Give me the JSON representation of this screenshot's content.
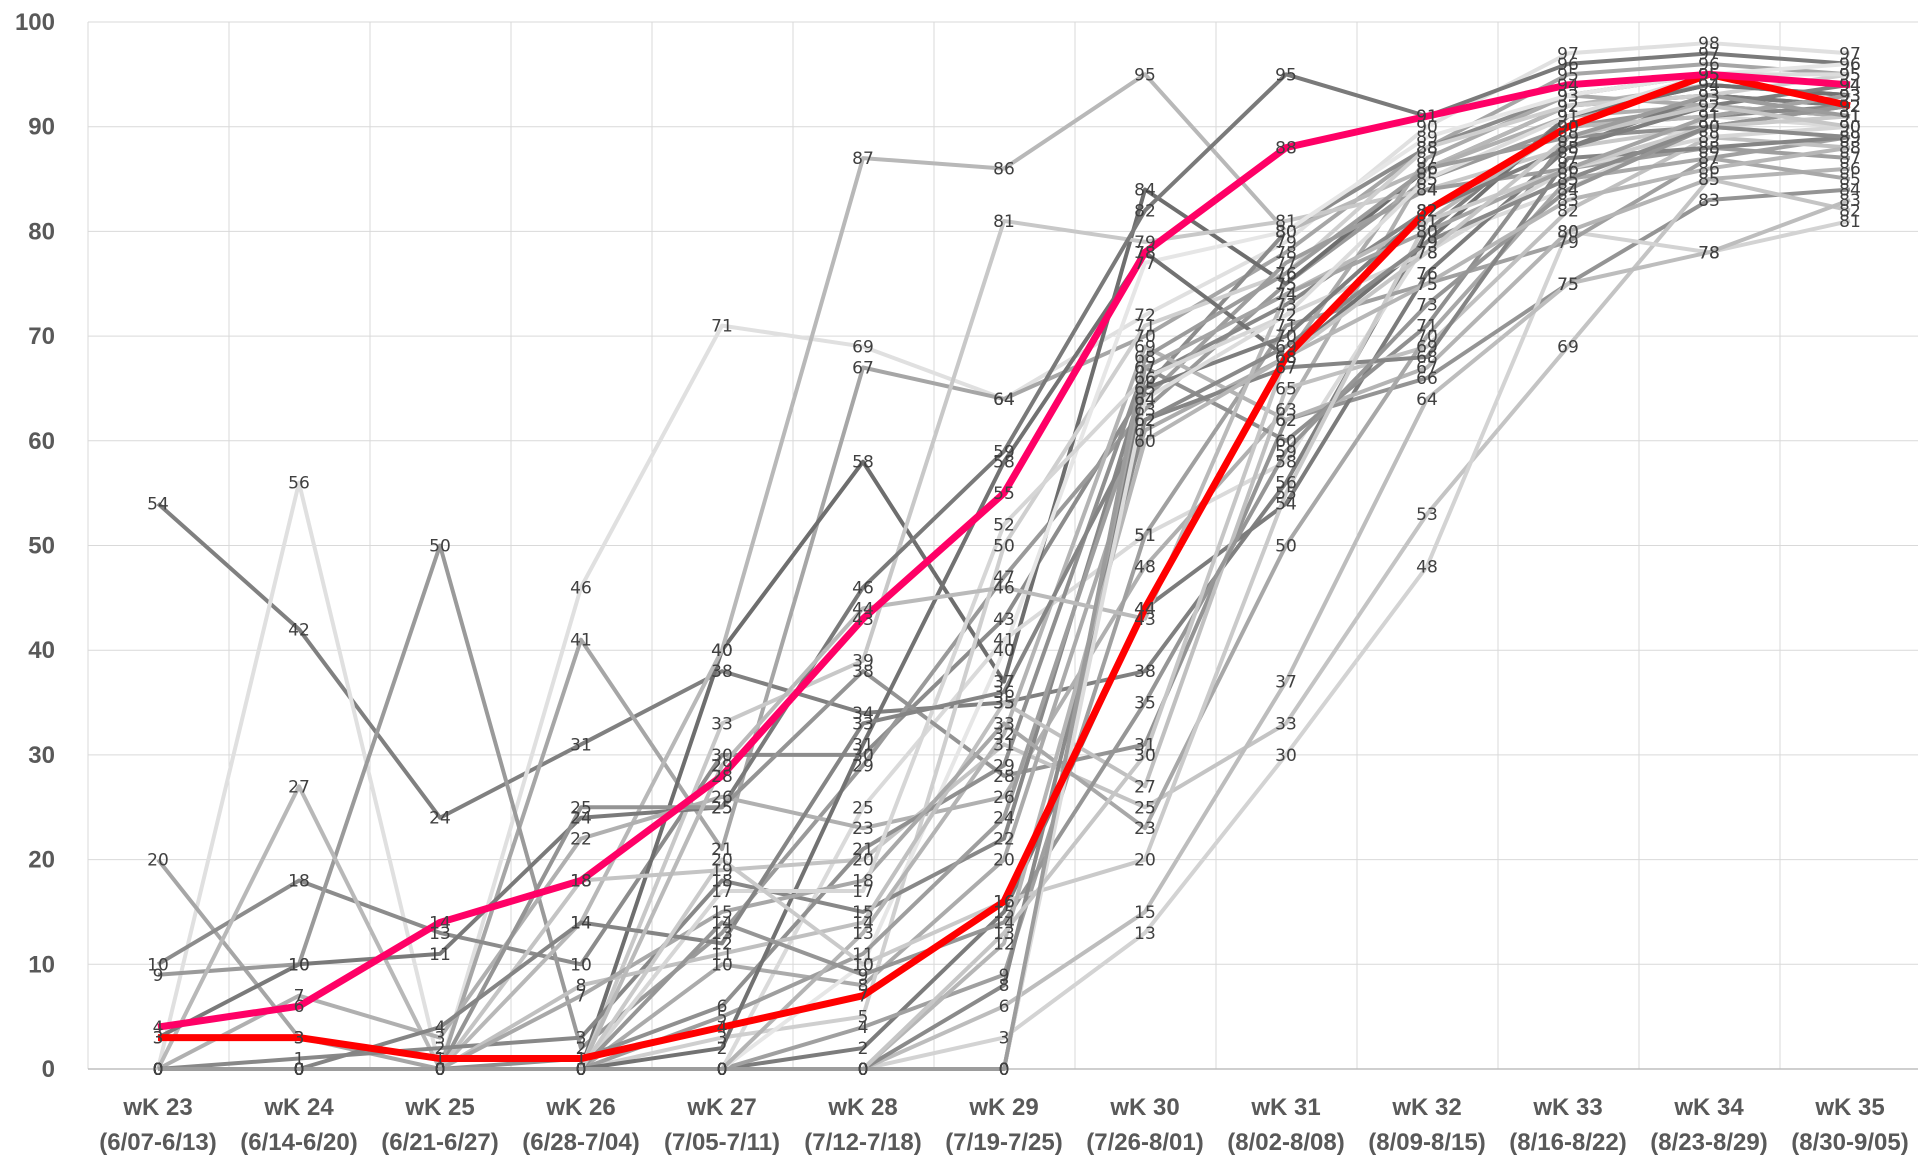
{
  "chart_data": {
    "type": "line",
    "title": "",
    "xlabel": "",
    "ylabel": "",
    "ylim": [
      0,
      100
    ],
    "yticks": [
      "0",
      "10",
      "20",
      "30",
      "40",
      "50",
      "60",
      "70",
      "80",
      "90",
      "100"
    ],
    "grid": true,
    "legend": "none",
    "categories": [
      {
        "week": "wK 23",
        "range": "(6/07-6/13)"
      },
      {
        "week": "wK 24",
        "range": "(6/14-6/20)"
      },
      {
        "week": "wK 25",
        "range": "(6/21-6/27)"
      },
      {
        "week": "wK 26",
        "range": "(6/28-7/04)"
      },
      {
        "week": "wK 27",
        "range": "(7/05-7/11)"
      },
      {
        "week": "wK 28",
        "range": "(7/12-7/18)"
      },
      {
        "week": "wK 29",
        "range": "(7/19-7/25)"
      },
      {
        "week": "wK 30",
        "range": "(7/26-8/01)"
      },
      {
        "week": "wK 31",
        "range": "(8/02-8/08)"
      },
      {
        "week": "wK 32",
        "range": "(8/09-8/15)"
      },
      {
        "week": "wK 33",
        "range": "(8/16-8/22)"
      },
      {
        "week": "wK 34",
        "range": "(8/23-8/29)"
      },
      {
        "week": "wK 35",
        "range": "(8/30-9/05)"
      }
    ],
    "series": [
      {
        "color": "#808080",
        "values": [
          54,
          42,
          24,
          31,
          38,
          34,
          35,
          38,
          56,
          80,
          91,
          94,
          93
        ]
      },
      {
        "color": "#e0e0e0",
        "values": [
          0,
          56,
          0,
          46,
          71,
          69,
          64,
          72,
          79,
          90,
          97,
          98,
          97
        ]
      },
      {
        "color": "#a6a6a6",
        "values": [
          20,
          3,
          0,
          41,
          21,
          67,
          64,
          70,
          78,
          88,
          95,
          96,
          95
        ]
      },
      {
        "color": "#8c8c8c",
        "values": [
          10,
          18,
          13,
          10,
          30,
          30,
          43,
          65,
          80,
          88,
          93,
          95,
          94
        ]
      },
      {
        "color": "#9a9a9a",
        "values": [
          9,
          10,
          50,
          2,
          13,
          29,
          47,
          63,
          75,
          85,
          90,
          92,
          91
        ]
      },
      {
        "color": "#6e6e6e",
        "values": [
          0,
          0,
          0,
          0,
          40,
          58,
          37,
          84,
          75,
          86,
          92,
          93,
          92
        ]
      },
      {
        "color": "#b8b8b8",
        "values": [
          0,
          27,
          0,
          14,
          40,
          87,
          86,
          95,
          80,
          86,
          92,
          94,
          93
        ]
      },
      {
        "color": "#c8c8c8",
        "values": [
          0,
          0,
          0,
          0,
          33,
          39,
          81,
          79,
          81,
          84,
          88,
          90,
          89
        ]
      },
      {
        "color": "#7a7a7a",
        "values": [
          3,
          10,
          11,
          24,
          25,
          46,
          59,
          82,
          95,
          91,
          96,
          97,
          96
        ]
      },
      {
        "color": "#dadada",
        "values": [
          0,
          0,
          0,
          0,
          0,
          25,
          41,
          51,
          58,
          79,
          84,
          91,
          90
        ]
      },
      {
        "color": "#b0b0b0",
        "values": [
          0,
          7,
          3,
          22,
          26,
          23,
          26,
          48,
          63,
          86,
          91,
          92,
          91
        ]
      },
      {
        "color": "#949494",
        "values": [
          0,
          0,
          0,
          25,
          25,
          38,
          28,
          31,
          62,
          66,
          75,
          83,
          84
        ]
      },
      {
        "color": "#c4c4c4",
        "values": [
          0,
          0,
          0,
          18,
          19,
          20,
          31,
          25,
          33,
          53,
          69,
          85,
          82
        ]
      },
      {
        "color": "#d3d3d3",
        "values": [
          0,
          0,
          0,
          0,
          0,
          0,
          3,
          13,
          30,
          48,
          80,
          78,
          81
        ]
      },
      {
        "color": "#bdbdbd",
        "values": [
          0,
          0,
          0,
          0,
          0,
          0,
          6,
          15,
          37,
          64,
          75,
          78,
          83
        ]
      },
      {
        "color": "#7c7c7c",
        "values": [
          0,
          0,
          0,
          0,
          0,
          2,
          15,
          44,
          54,
          76,
          88,
          93,
          92
        ]
      },
      {
        "color": "#a0a0a0",
        "values": [
          0,
          0,
          0,
          0,
          0,
          4,
          9,
          51,
          71,
          75,
          79,
          87,
          89
        ]
      },
      {
        "color": "#ababab",
        "values": [
          0,
          0,
          0,
          0,
          10,
          8,
          20,
          61,
          68,
          87,
          93,
          92,
          91
        ]
      },
      {
        "color": "#cfcfcf",
        "values": [
          0,
          0,
          0,
          0,
          3,
          5,
          50,
          71,
          76,
          88,
          92,
          93,
          95
        ]
      },
      {
        "color": "#e6e6e6",
        "values": [
          0,
          0,
          0,
          0,
          0,
          10,
          40,
          77,
          80,
          89,
          93,
          95,
          96
        ]
      },
      {
        "color": "#888888",
        "values": [
          0,
          1,
          2,
          3,
          18,
          15,
          22,
          66,
          73,
          82,
          90,
          91,
          92
        ]
      },
      {
        "color": "#9e9e9e",
        "values": [
          0,
          0,
          0,
          0,
          5,
          11,
          24,
          64,
          77,
          84,
          86,
          88,
          87
        ]
      },
      {
        "color": "#b4b4b4",
        "values": [
          0,
          0,
          0,
          0,
          0,
          13,
          32,
          69,
          62,
          67,
          80,
          85,
          86
        ]
      },
      {
        "color": "#909090",
        "values": [
          0,
          0,
          0,
          1,
          6,
          21,
          29,
          67,
          60,
          71,
          89,
          90,
          92
        ]
      },
      {
        "color": "#c0c0c0",
        "values": [
          0,
          0,
          0,
          8,
          11,
          14,
          35,
          27,
          65,
          69,
          82,
          89,
          88
        ]
      },
      {
        "color": "#727272",
        "values": [
          0,
          0,
          0,
          0,
          2,
          31,
          58,
          78,
          68,
          79,
          91,
          94,
          93
        ]
      },
      {
        "color": "#a8a8a8",
        "values": [
          0,
          0,
          0,
          7,
          15,
          18,
          33,
          23,
          50,
          70,
          85,
          87,
          85
        ]
      },
      {
        "color": "#d6d6d6",
        "values": [
          0,
          0,
          0,
          0,
          17,
          17,
          52,
          66,
          72,
          78,
          86,
          89,
          90
        ]
      },
      {
        "color": "#858585",
        "values": [
          0,
          0,
          4,
          14,
          12,
          33,
          36,
          62,
          67,
          68,
          87,
          88,
          89
        ]
      },
      {
        "color": "#bababa",
        "values": [
          0,
          0,
          0,
          0,
          29,
          44,
          46,
          43,
          74,
          81,
          90,
          91,
          93
        ]
      },
      {
        "color": "#969696",
        "values": [
          0,
          0,
          0,
          0,
          14,
          9,
          14,
          35,
          59,
          73,
          84,
          90,
          92
        ]
      },
      {
        "color": "#cacaca",
        "values": [
          0,
          0,
          0,
          0,
          20,
          10,
          16,
          20,
          55,
          81,
          86,
          90,
          91
        ]
      },
      {
        "color": "#7e7e7e",
        "values": [
          0,
          0,
          0,
          0,
          0,
          0,
          0,
          65,
          70,
          82,
          88,
          92,
          94
        ]
      },
      {
        "color": "#a4a4a4",
        "values": [
          0,
          0,
          0,
          0,
          0,
          0,
          0,
          67,
          74,
          80,
          86,
          91,
          93
        ]
      },
      {
        "color": "#8a8a8a",
        "values": [
          0,
          0,
          0,
          0,
          0,
          0,
          8,
          62,
          69,
          79,
          85,
          90,
          89
        ]
      },
      {
        "color": "#b6b6b6",
        "values": [
          0,
          0,
          0,
          0,
          0,
          0,
          12,
          60,
          68,
          75,
          83,
          86,
          88
        ]
      },
      {
        "color": "#dcdcdc",
        "values": [
          0,
          0,
          0,
          0,
          0,
          0,
          0,
          64,
          72,
          85,
          91,
          95,
          95
        ]
      },
      {
        "color": "#c6c6c6",
        "values": [
          0,
          0,
          0,
          0,
          0,
          0,
          13,
          30,
          68,
          78,
          89,
          92,
          90
        ]
      },
      {
        "color": "#9c9c9c",
        "values": [
          0,
          0,
          0,
          0,
          0,
          0,
          0,
          68,
          76,
          86,
          89,
          93,
          91
        ]
      },
      {
        "color": "#ff0000",
        "values": [
          3,
          3,
          1,
          1,
          4,
          7,
          16,
          44,
          68,
          82,
          90,
          95,
          92
        ]
      },
      {
        "color": "#ff0066",
        "values": [
          4,
          6,
          14,
          18,
          28,
          43,
          55,
          78,
          88,
          91,
          94,
          95,
          94
        ]
      }
    ]
  }
}
